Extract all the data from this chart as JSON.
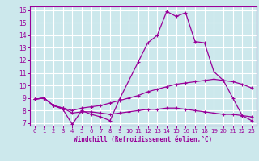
{
  "x": [
    0,
    1,
    2,
    3,
    4,
    5,
    6,
    7,
    8,
    9,
    10,
    11,
    12,
    13,
    14,
    15,
    16,
    17,
    18,
    19,
    20,
    21,
    22,
    23
  ],
  "line1": [
    8.9,
    9.0,
    8.4,
    8.1,
    6.9,
    8.0,
    7.7,
    7.5,
    7.2,
    8.9,
    10.4,
    11.9,
    13.4,
    14.0,
    15.9,
    15.5,
    15.8,
    13.5,
    13.4,
    11.1,
    10.4,
    9.0,
    7.6,
    7.2
  ],
  "line2": [
    8.9,
    9.0,
    8.4,
    8.2,
    8.0,
    8.2,
    8.3,
    8.4,
    8.6,
    8.8,
    9.0,
    9.2,
    9.5,
    9.7,
    9.9,
    10.1,
    10.2,
    10.3,
    10.4,
    10.5,
    10.4,
    10.3,
    10.1,
    9.8
  ],
  "line3": [
    8.9,
    9.0,
    8.4,
    8.2,
    7.8,
    7.9,
    7.9,
    7.8,
    7.7,
    7.8,
    7.9,
    8.0,
    8.1,
    8.1,
    8.2,
    8.2,
    8.1,
    8.0,
    7.9,
    7.8,
    7.7,
    7.7,
    7.6,
    7.5
  ],
  "color": "#990099",
  "bg_color": "#cce8ec",
  "grid_color": "#ffffff",
  "xlabel": "Windchill (Refroidissement éolien,°C)",
  "xlim": [
    -0.5,
    23.5
  ],
  "ylim": [
    6.8,
    16.3
  ],
  "yticks": [
    7,
    8,
    9,
    10,
    11,
    12,
    13,
    14,
    15,
    16
  ],
  "xticks": [
    0,
    1,
    2,
    3,
    4,
    5,
    6,
    7,
    8,
    9,
    10,
    11,
    12,
    13,
    14,
    15,
    16,
    17,
    18,
    19,
    20,
    21,
    22,
    23
  ]
}
